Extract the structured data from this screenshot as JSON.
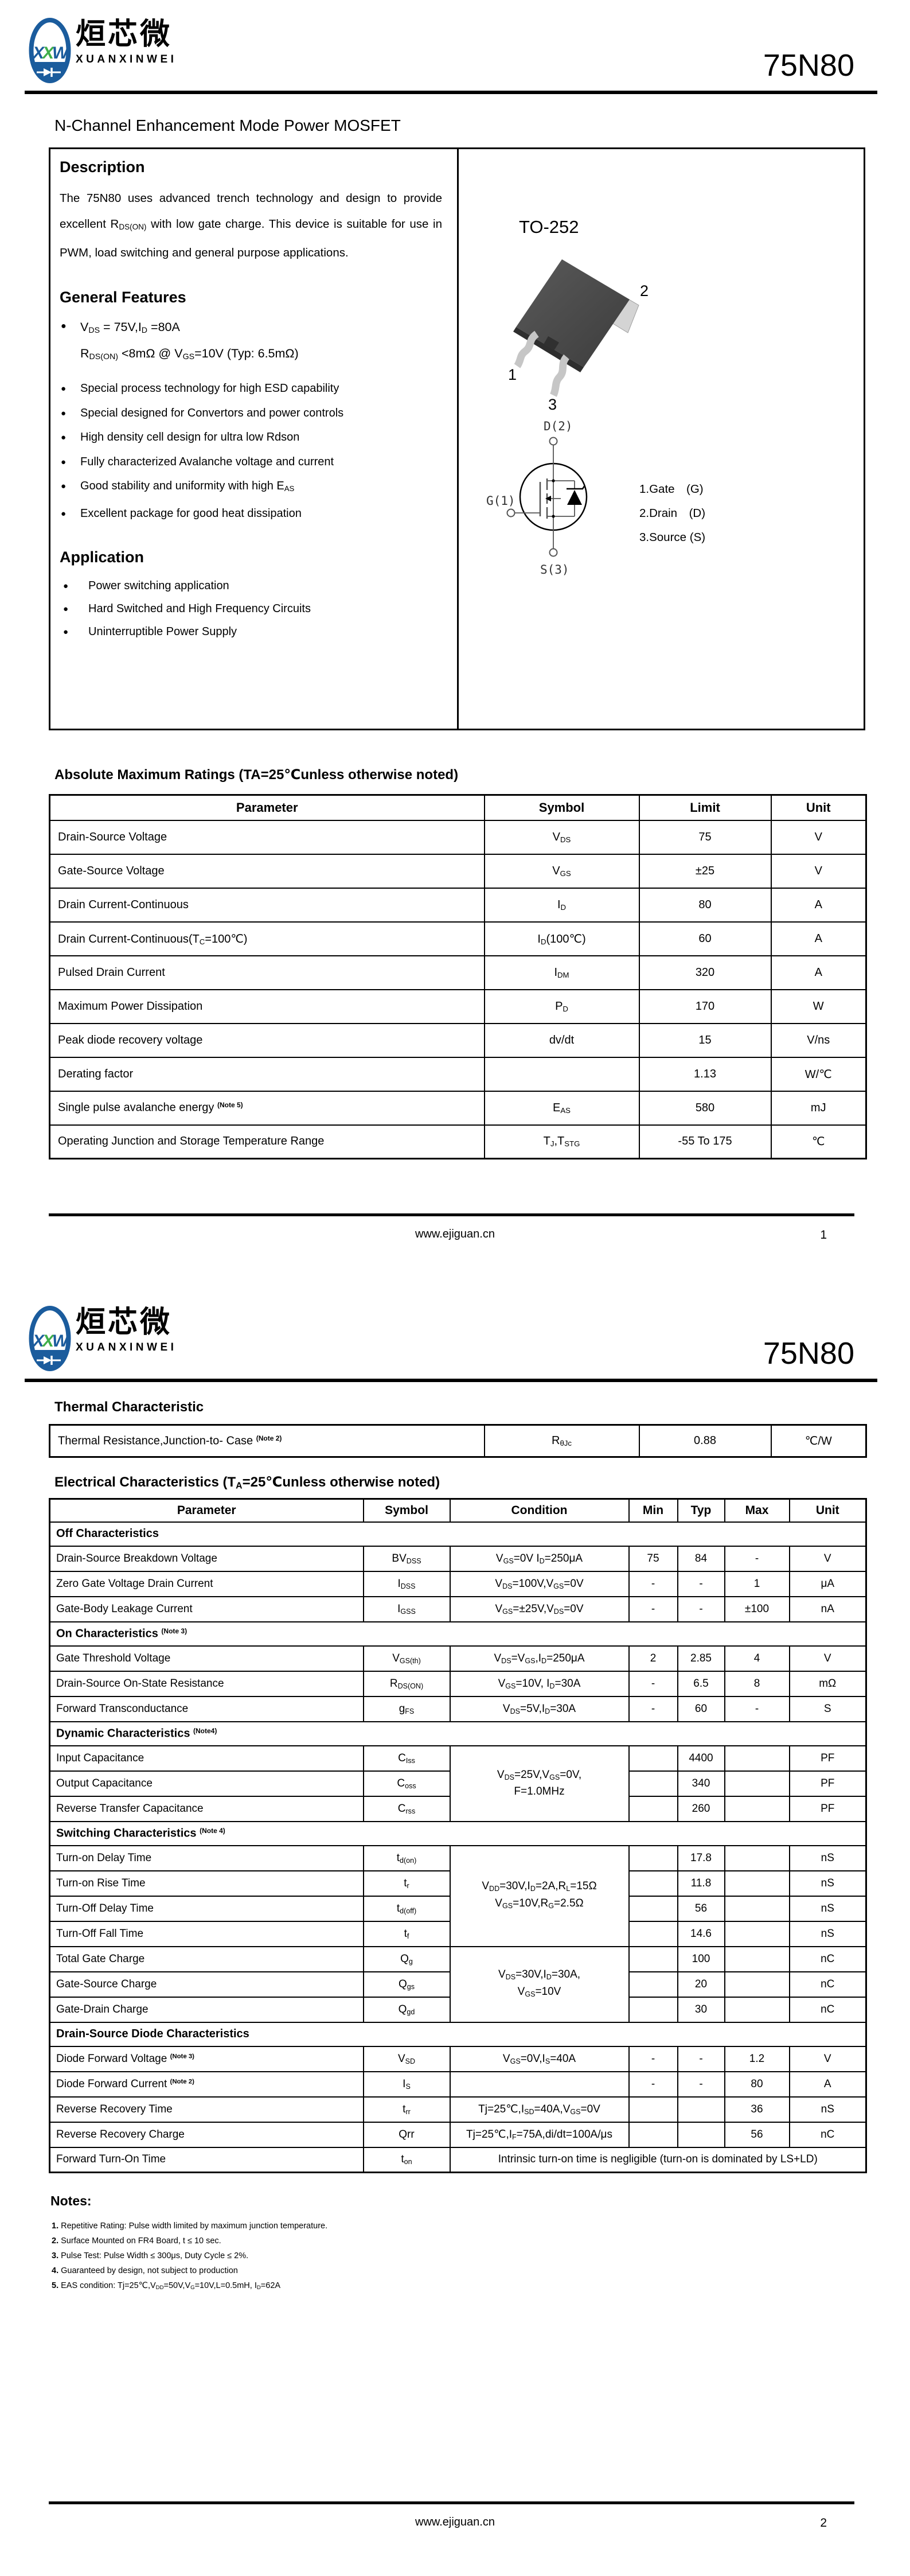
{
  "brand": {
    "logo_letters_parts": [
      "X",
      "X",
      "W"
    ],
    "chinese_name": "烜芯微",
    "latin_name": "XUANXINWEI",
    "blue": "#1b5c9d",
    "green": "#3fae49"
  },
  "part_number": "75N80",
  "page1": {
    "doc_title": "N-Channel Enhancement Mode Power MOSFET",
    "description": {
      "heading": "Description",
      "body": "The  75N80 uses advanced trench technology and design to provide excellent R~DS(ON)~ with low gate charge. This device is suitable for use in PWM, load switching and general purpose applications."
    },
    "general_features": {
      "heading": "General Features",
      "lead_bullet": "V~DS~ = 75V,I~D~ =80A",
      "lead_sub": "R~DS(ON)~ <8mΩ @ V~GS~=10V (Typ: 6.5mΩ)",
      "items": [
        "Special process technology for high ESD capability",
        "Special designed for Convertors and power controls",
        "High density cell design for ultra low Rdson",
        "Fully characterized Avalanche voltage and current",
        "Good stability and uniformity with high E~AS~",
        "Excellent package for good heat dissipation"
      ]
    },
    "application": {
      "heading": "Application",
      "items": [
        "Power switching application",
        "Hard Switched and High Frequency Circuits",
        "Uninterruptible Power Supply"
      ]
    },
    "package": {
      "name": "TO-252",
      "pin_labels": [
        "1",
        "2",
        "3"
      ],
      "symbol_labels": {
        "drain": "D(2)",
        "gate": "G(1)",
        "source": "S(3)"
      },
      "pin_legend": [
        "1.Gate  (G)",
        "2.Drain  (D)",
        "3.Source (S)"
      ]
    },
    "abs_max": {
      "title": "Absolute Maximum Ratings (TA=25℃unless otherwise noted)",
      "headers": [
        "Parameter",
        "Symbol",
        "Limit",
        "Unit"
      ],
      "rows": [
        [
          "Drain-Source Voltage",
          "V~DS~",
          "75",
          "V"
        ],
        [
          "Gate-Source Voltage",
          "V~GS~",
          "±25",
          "V"
        ],
        [
          "Drain Current-Continuous",
          "I~D~",
          "80",
          "A"
        ],
        [
          "Drain Current-Continuous(T~C~=100℃)",
          "I~D~(100℃)",
          "60",
          "A"
        ],
        [
          "Pulsed Drain Current",
          "I~DM~",
          "320",
          "A"
        ],
        [
          "Maximum Power Dissipation",
          "P~D~",
          "170",
          "W"
        ],
        [
          "Peak diode recovery voltage",
          "dv/dt",
          "15",
          "V/ns"
        ],
        [
          "Derating factor",
          "",
          "1.13",
          "W/℃"
        ],
        [
          "Single pulse avalanche energy ^(Note 5)^",
          "E~AS~",
          "580",
          "mJ"
        ],
        [
          "Operating Junction and Storage Temperature Range",
          "T~J~,T~STG~",
          "-55 To 175",
          "℃"
        ]
      ]
    },
    "footer": {
      "website": "www.ejiguan.cn",
      "page_number": "1"
    }
  },
  "page2": {
    "thermal": {
      "title": "Thermal Characteristic",
      "row": [
        "Thermal Resistance,Junction-to- Case ^(Note 2)^",
        "R~θJc~",
        "0.88",
        "℃/W"
      ]
    },
    "electrical": {
      "title": "Electrical Characteristics (T~A~=25℃unless otherwise noted)",
      "headers": [
        "Parameter",
        "Symbol",
        "Condition",
        "Min",
        "Typ",
        "Max",
        "Unit"
      ],
      "sections": {
        "off": {
          "label": "Off Characteristics",
          "rows": [
            [
              "Drain-Source Breakdown Voltage",
              "BV~DSS~",
              "V~GS~=0V I~D~=250μA",
              "75",
              "84",
              "-",
              "V"
            ],
            [
              "Zero Gate Voltage Drain Current",
              "I~DSS~",
              "V~DS~=100V,V~GS~=0V",
              "-",
              "-",
              "1",
              "μA"
            ],
            [
              "Gate-Body Leakage Current",
              "I~GSS~",
              "V~GS~=±25V,V~DS~=0V",
              "-",
              "-",
              "±100",
              "nA"
            ]
          ]
        },
        "on": {
          "label": "On Characteristics ^(Note 3)^",
          "rows": [
            [
              "Gate Threshold Voltage",
              "V~GS(th)~",
              "V~DS~=V~GS~,I~D~=250μA",
              "2",
              "2.85",
              "4",
              "V"
            ],
            [
              "Drain-Source On-State Resistance",
              "R~DS(ON)~",
              "V~GS~=10V, I~D~=30A",
              "-",
              "6.5",
              "8",
              "mΩ"
            ],
            [
              "Forward Transconductance",
              "g~FS~",
              "V~DS~=5V,I~D~=30A",
              "-",
              "60",
              "-",
              "S"
            ]
          ]
        },
        "dynamic": {
          "label": "Dynamic Characteristics ^(Note4)^",
          "shared_condition": "V~DS~=25V,V~GS~=0V,\nF=1.0MHz",
          "rows": [
            [
              "Input Capacitance",
              "C~Iss~",
              "",
              "4400",
              "",
              "PF"
            ],
            [
              "Output Capacitance",
              "C~oss~",
              "",
              "340",
              "",
              "PF"
            ],
            [
              "Reverse Transfer Capacitance",
              "C~rss~",
              "",
              "260",
              "",
              "PF"
            ]
          ]
        },
        "switching": {
          "label": "Switching Characteristics ^(Note 4)^",
          "groups": [
            {
              "condition": "V~DD~=30V,I~D~=2A,R~L~=15Ω\nV~GS~=10V,R~G~=2.5Ω",
              "rows": [
                [
                  "Turn-on Delay Time",
                  "t~d(on)~",
                  "",
                  "17.8",
                  "",
                  "nS"
                ],
                [
                  "Turn-on Rise Time",
                  "t~r~",
                  "",
                  "11.8",
                  "",
                  "nS"
                ],
                [
                  "Turn-Off Delay Time",
                  "t~d(off)~",
                  "",
                  "56",
                  "",
                  "nS"
                ],
                [
                  "Turn-Off Fall Time",
                  "t~f~",
                  "",
                  "14.6",
                  "",
                  "nS"
                ]
              ]
            },
            {
              "condition": "V~DS~=30V,I~D~=30A,\nV~GS~=10V",
              "rows": [
                [
                  "Total Gate Charge",
                  "Q~g~",
                  "",
                  "100",
                  "",
                  "nC"
                ],
                [
                  "Gate-Source Charge",
                  "Q~gs~",
                  "",
                  "20",
                  "",
                  "nC"
                ],
                [
                  "Gate-Drain Charge",
                  "Q~gd~",
                  "",
                  "30",
                  "",
                  "nC"
                ]
              ]
            }
          ]
        },
        "diode": {
          "label": "Drain-Source Diode Characteristics",
          "rows": [
            [
              "Diode Forward Voltage ^(Note 3)^",
              "V~SD~",
              "V~GS~=0V,I~S~=40A",
              "-",
              "-",
              "1.2",
              "V"
            ],
            [
              "Diode Forward Current ^(Note 2)^",
              "I~S~",
              "",
              "-",
              "-",
              "80",
              "A"
            ],
            [
              "Reverse Recovery Time",
              "t~rr~",
              "Tj=25℃,I~SD~=40A,V~GS~=0V",
              "",
              "",
              "36",
              "nS"
            ],
            [
              "Reverse Recovery Charge",
              "Qrr",
              "Tj=25℃,I~F~=75A,di/dt=100A/μs",
              "",
              "",
              "56",
              "nC"
            ]
          ],
          "ton": {
            "param": "Forward Turn-On Time",
            "symbol": "t~on~",
            "note": "Intrinsic turn-on time is negligible (turn-on is dominated by LS+LD)"
          }
        }
      }
    },
    "notes": {
      "heading": "Notes:",
      "items": [
        {
          "n": "1.",
          "t": "Repetitive Rating: Pulse width limited by maximum junction temperature."
        },
        {
          "n": "2.",
          "t": "Surface Mounted on FR4 Board, t ≤ 10 sec."
        },
        {
          "n": "3.",
          "t": "Pulse Test: Pulse Width ≤ 300μs, Duty Cycle ≤ 2%."
        },
        {
          "n": "4.",
          "t": "Guaranteed by design, not subject to production"
        },
        {
          "n": "5.",
          "t": "EAS condition:  Tj=25℃,V~DD~=50V,V~G~=10V,L=0.5mH, I~D~=62A"
        }
      ]
    },
    "footer": {
      "website": "www.ejiguan.cn",
      "page_number": "2"
    }
  }
}
